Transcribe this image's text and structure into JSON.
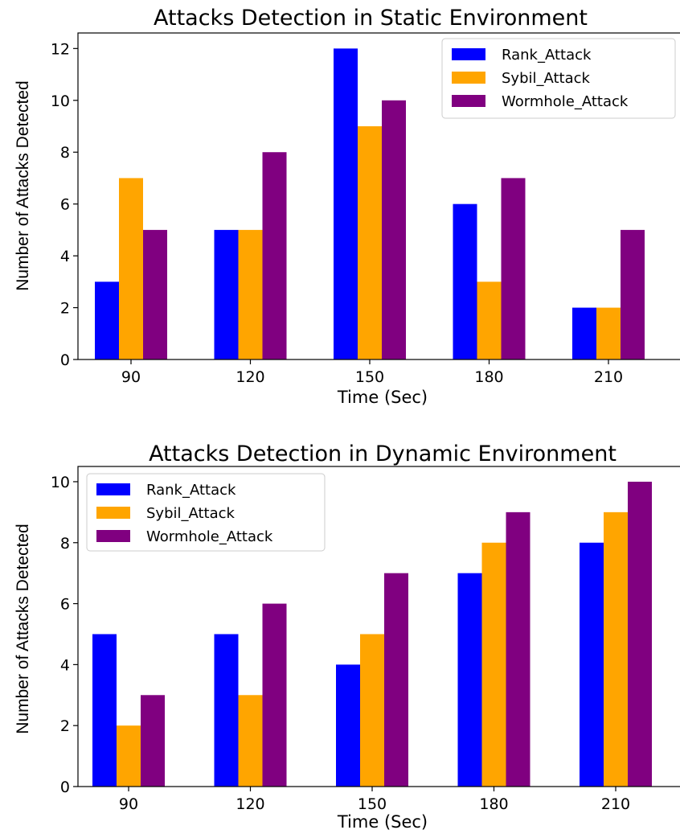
{
  "colors": {
    "Rank_Attack": "#0000ff",
    "Sybil_Attack": "#ffa500",
    "Wormhole_Attack": "#800080"
  },
  "chart_data": [
    {
      "type": "bar",
      "title": "Attacks Detection in Static Environment",
      "xlabel": "Time (Sec)",
      "ylabel": "Number of Attacks Detected",
      "categories": [
        "90",
        "120",
        "150",
        "180",
        "210"
      ],
      "series": [
        {
          "name": "Rank_Attack",
          "values": [
            3,
            5,
            12,
            6,
            2
          ]
        },
        {
          "name": "Sybil_Attack",
          "values": [
            7,
            5,
            9,
            3,
            2
          ]
        },
        {
          "name": "Wormhole_Attack",
          "values": [
            5,
            8,
            10,
            7,
            5
          ]
        }
      ],
      "yticks": [
        "0",
        "2",
        "4",
        "6",
        "8",
        "10",
        "12"
      ],
      "ylim": [
        0,
        12.6
      ],
      "legend": "top-right",
      "grid": false
    },
    {
      "type": "bar",
      "title": "Attacks Detection in Dynamic Environment",
      "xlabel": "Time (Sec)",
      "ylabel": "Number of Attacks Detected",
      "categories": [
        "90",
        "120",
        "150",
        "180",
        "210"
      ],
      "series": [
        {
          "name": "Rank_Attack",
          "values": [
            5,
            5,
            4,
            7,
            8
          ]
        },
        {
          "name": "Sybil_Attack",
          "values": [
            2,
            3,
            5,
            8,
            9
          ]
        },
        {
          "name": "Wormhole_Attack",
          "values": [
            3,
            6,
            7,
            9,
            10
          ]
        }
      ],
      "yticks": [
        "0",
        "2",
        "4",
        "6",
        "8",
        "10"
      ],
      "ylim": [
        0,
        10.5
      ],
      "legend": "top-left",
      "grid": false
    }
  ]
}
